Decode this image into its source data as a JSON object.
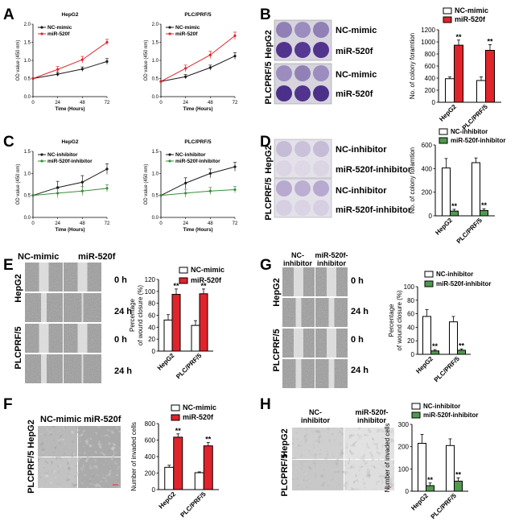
{
  "panel_labels": {
    "A": "A",
    "B": "B",
    "C": "C",
    "D": "D",
    "E": "E",
    "F": "F",
    "G": "G",
    "H": "H"
  },
  "colors": {
    "nc": "#1a1a1a",
    "mir": "#e0242b",
    "inh": "#3a8d3a",
    "inh_fill": "#4f9a4f",
    "bar_edge": "#000000",
    "dish_dark": "#5b3f95",
    "dish_light": "#b7a8d1",
    "field": "#8a8a8a"
  },
  "photos": {
    "B": {
      "row_labels": [
        "HepG2",
        "PLCPRF/5"
      ],
      "labels": [
        "NC-mimic",
        "miR-520f",
        "NC-mimic",
        "miR-520f"
      ]
    },
    "D": {
      "row_labels": [
        "HepG2",
        "PLCPRF/5"
      ],
      "labels": [
        "NC-inhibitor",
        "miR-520f-inhibitor",
        "NC-inhibitor",
        "miR-520f-inhibitor"
      ]
    },
    "E": {
      "col_headers": [
        "NC-mimic",
        "miR-520f"
      ],
      "row_labels": [
        "HepG2",
        "PLCPRF/5"
      ],
      "time_labels": [
        "0 h",
        "24 h",
        "0 h",
        "24 h"
      ]
    },
    "G": {
      "col_headers": [
        "NC-\ninhibitor",
        "miR-520f-\ninhibitor"
      ],
      "row_labels": [
        "HepG2",
        "PLCPRF/5"
      ],
      "time_labels": [
        "0 h",
        "24 h",
        "0 h",
        "24 h"
      ]
    },
    "F": {
      "col_headers": [
        "NC-mimic",
        "miR-520f"
      ],
      "row_label": "PLCPRF/5 HepG2"
    },
    "H": {
      "col_headers": [
        "NC-\ninhibitor",
        "miR-520f-\ninhibitor"
      ],
      "row_labels": [
        "HepG2",
        "PLCPRF/5"
      ]
    }
  },
  "chart_data": [
    {
      "id": "A1",
      "type": "line",
      "title": "HepG2",
      "xlabel": "Time (Hours)",
      "ylabel": "OD value (450 nm)",
      "x": [
        0,
        24,
        48,
        72
      ],
      "xlim": [
        0,
        72
      ],
      "ylim": [
        0.0,
        2.0
      ],
      "yticks": [
        0.0,
        0.5,
        1.0,
        1.5,
        2.0
      ],
      "series": [
        {
          "name": "NC-mimic",
          "values": [
            0.5,
            0.62,
            0.76,
            0.97
          ]
        },
        {
          "name": "miR-520f",
          "values": [
            0.5,
            0.75,
            1.02,
            1.5
          ]
        }
      ]
    },
    {
      "id": "A2",
      "type": "line",
      "title": "PLC/PRF/5",
      "xlabel": "Time (Hours)",
      "ylabel": "OD value (450 nm)",
      "x": [
        0,
        24,
        48,
        72
      ],
      "xlim": [
        0,
        72
      ],
      "ylim": [
        0.0,
        2.0
      ],
      "yticks": [
        0.0,
        0.5,
        1.0,
        1.5,
        2.0
      ],
      "series": [
        {
          "name": "NC-mimic",
          "values": [
            0.42,
            0.55,
            0.8,
            1.12
          ]
        },
        {
          "name": "miR-520f",
          "values": [
            0.42,
            0.78,
            1.15,
            1.68
          ]
        }
      ]
    },
    {
      "id": "C1",
      "type": "line",
      "title": "HepG2",
      "xlabel": "Time (Hours)",
      "ylabel": "OD value (450 nm)",
      "x": [
        0,
        24,
        48,
        72
      ],
      "xlim": [
        0,
        72
      ],
      "ylim": [
        0.0,
        1.5
      ],
      "yticks": [
        0.0,
        0.5,
        1.0,
        1.5
      ],
      "series": [
        {
          "name": "NC-inhibitor",
          "values": [
            0.5,
            0.68,
            0.8,
            1.1
          ]
        },
        {
          "name": "miR-520f-inhibitor",
          "values": [
            0.5,
            0.55,
            0.6,
            0.66
          ]
        }
      ]
    },
    {
      "id": "C2",
      "type": "line",
      "title": "PLC/PRF/5",
      "xlabel": "Time (Hours)",
      "ylabel": "OD value (450 nm)",
      "x": [
        0,
        24,
        48,
        72
      ],
      "xlim": [
        0,
        72
      ],
      "ylim": [
        0.0,
        1.5
      ],
      "yticks": [
        0.0,
        0.5,
        1.0,
        1.5
      ],
      "series": [
        {
          "name": "NC-inhibitor",
          "values": [
            0.5,
            0.78,
            1.0,
            1.15
          ]
        },
        {
          "name": "miR-520f-inhibitor",
          "values": [
            0.5,
            0.55,
            0.6,
            0.63
          ]
        }
      ]
    },
    {
      "id": "B",
      "type": "bar",
      "ylabel": "No. of colony foramtion",
      "categories": [
        "HepG2",
        "PLC/PRF/5"
      ],
      "ylim": [
        0,
        1200
      ],
      "yticks": [
        0,
        200,
        400,
        600,
        800,
        1000,
        1200
      ],
      "series": [
        {
          "name": "NC-mimic",
          "values": [
            390,
            360
          ]
        },
        {
          "name": "miR-520f",
          "values": [
            945,
            860
          ]
        }
      ],
      "annotations": [
        "**",
        "**"
      ]
    },
    {
      "id": "D",
      "type": "bar",
      "ylabel": "No. of colony foramtion",
      "categories": [
        "HepG2",
        "PLC/PRF/5"
      ],
      "ylim": [
        0,
        600
      ],
      "yticks": [
        0,
        200,
        400,
        600
      ],
      "series": [
        {
          "name": "NC-inhibitor",
          "values": [
            405,
            450
          ]
        },
        {
          "name": "miR-520f-inhibitor",
          "values": [
            40,
            45
          ]
        }
      ],
      "annotations": [
        "**",
        "**"
      ]
    },
    {
      "id": "E",
      "type": "bar",
      "ylabel": "Percentage\nof wound closure (%)",
      "categories": [
        "HepG2",
        "PLC/PRF/5"
      ],
      "ylim": [
        0,
        120
      ],
      "yticks": [
        0,
        20,
        40,
        60,
        80,
        100,
        120
      ],
      "series": [
        {
          "name": "NC-mimic",
          "values": [
            52,
            43
          ]
        },
        {
          "name": "miR-520f",
          "values": [
            95,
            96
          ]
        }
      ],
      "annotations": [
        "**",
        "**"
      ]
    },
    {
      "id": "G",
      "type": "bar",
      "ylabel": "Percentage\nof wound closure (%)",
      "categories": [
        "HepG2",
        "PLC/PRF/5"
      ],
      "ylim": [
        0,
        100
      ],
      "yticks": [
        0,
        20,
        40,
        60,
        80,
        100
      ],
      "series": [
        {
          "name": "NC-inhibitor",
          "values": [
            56,
            48
          ]
        },
        {
          "name": "miR-520f-inhibitor",
          "values": [
            5,
            6
          ]
        }
      ],
      "annotations": [
        "**",
        "**"
      ]
    },
    {
      "id": "F",
      "type": "bar",
      "ylabel": "Number of invaded cells",
      "categories": [
        "HepG2",
        "PLC/PRF/5"
      ],
      "ylim": [
        0,
        800
      ],
      "yticks": [
        0,
        200,
        400,
        600,
        800
      ],
      "series": [
        {
          "name": "NC-mimic",
          "values": [
            270,
            205
          ]
        },
        {
          "name": "miR-520f",
          "values": [
            635,
            530
          ]
        }
      ],
      "annotations": [
        "**",
        "**"
      ]
    },
    {
      "id": "H",
      "type": "bar",
      "ylabel": "Number of invaded cells",
      "categories": [
        "HepG2",
        "PLC/PRF/5"
      ],
      "ylim": [
        0,
        300
      ],
      "yticks": [
        0,
        100,
        200,
        300
      ],
      "series": [
        {
          "name": "NC-inhibitor",
          "values": [
            215,
            205
          ]
        },
        {
          "name": "miR-520f-inhibitor",
          "values": [
            25,
            45
          ]
        }
      ],
      "annotations": [
        "**",
        "**"
      ]
    }
  ]
}
